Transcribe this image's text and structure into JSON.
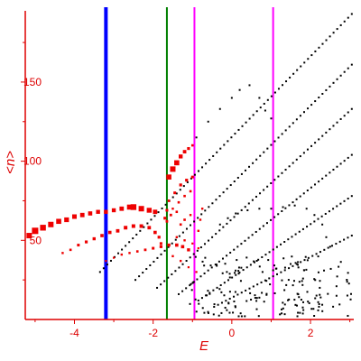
{
  "chart_data": {
    "type": "scatter",
    "title": "",
    "xlabel": "E",
    "ylabel": "<n>",
    "xlim": [
      -5.25,
      3.1
    ],
    "ylim": [
      0,
      195
    ],
    "x_ticks": [
      -4,
      -2,
      0,
      2
    ],
    "x_tick_labels": [
      "-4",
      "-2",
      "0",
      "2"
    ],
    "y_ticks": [
      50,
      100,
      150
    ],
    "y_tick_labels": [
      "50",
      "100",
      "150"
    ],
    "grid": false,
    "legend": "none",
    "colors": {
      "axis": "#dd0000",
      "red_points": "#ee0000",
      "black_points": "#000000",
      "line_blue": "#0000ff",
      "line_green": "#008000",
      "line_magenta": "#ff00ff"
    },
    "vertical_lines": [
      {
        "x": -3.2,
        "color": "#0000ff"
      },
      {
        "x": -1.65,
        "color": "#008000"
      },
      {
        "x": -0.95,
        "color": "#ff00ff"
      },
      {
        "x": 1.05,
        "color": "#ff00ff"
      }
    ],
    "series": [
      {
        "color": "red",
        "points": [
          [
            -5.15,
            53,
            3.0
          ],
          [
            -5.0,
            56,
            3.5
          ],
          [
            -4.8,
            58,
            3.2
          ],
          [
            -4.6,
            60,
            3.0
          ],
          [
            -4.4,
            62,
            2.8
          ],
          [
            -4.2,
            63,
            2.6
          ],
          [
            -4.0,
            65,
            2.5
          ],
          [
            -3.8,
            66,
            2.4
          ],
          [
            -3.6,
            67,
            2.3
          ],
          [
            -3.4,
            68,
            2.2
          ],
          [
            -3.2,
            68,
            2.2
          ],
          [
            -3.0,
            69,
            2.2
          ],
          [
            -2.8,
            70,
            2.4
          ],
          [
            -2.6,
            71,
            2.8
          ],
          [
            -2.5,
            71,
            3.2
          ],
          [
            -2.3,
            70,
            3.0
          ],
          [
            -2.1,
            69,
            2.7
          ],
          [
            -1.95,
            68,
            2.4
          ],
          [
            -4.3,
            42,
            1.2
          ],
          [
            -4.1,
            44,
            1.3
          ],
          [
            -3.9,
            47,
            1.5
          ],
          [
            -3.7,
            49,
            1.6
          ],
          [
            -3.5,
            51,
            1.7
          ],
          [
            -3.3,
            53,
            1.8
          ],
          [
            -3.1,
            55,
            1.8
          ],
          [
            -2.9,
            56,
            1.9
          ],
          [
            -2.7,
            58,
            2.0
          ],
          [
            -2.5,
            59,
            2.0
          ],
          [
            -2.3,
            59,
            2.0
          ],
          [
            -2.1,
            58,
            1.9
          ],
          [
            -1.95,
            55,
            1.8
          ],
          [
            -1.85,
            52,
            1.6
          ],
          [
            -1.8,
            48,
            1.5
          ],
          [
            -3.2,
            37,
            1.1
          ],
          [
            -3.0,
            39,
            1.1
          ],
          [
            -2.8,
            41,
            1.2
          ],
          [
            -2.6,
            42,
            1.2
          ],
          [
            -2.4,
            43,
            1.3
          ],
          [
            -2.2,
            44,
            1.4
          ],
          [
            -2.0,
            45,
            1.5
          ],
          [
            -1.8,
            46,
            1.6
          ],
          [
            -1.6,
            47,
            1.7
          ],
          [
            -1.4,
            47,
            1.8
          ],
          [
            -1.25,
            46,
            1.8
          ],
          [
            -1.1,
            44,
            1.7
          ],
          [
            -1.6,
            90,
            2.8
          ],
          [
            -1.5,
            95,
            3.0
          ],
          [
            -1.4,
            99,
            2.8
          ],
          [
            -1.3,
            103,
            2.2
          ],
          [
            -1.2,
            106,
            1.9
          ],
          [
            -1.1,
            108,
            1.6
          ],
          [
            -1.0,
            110,
            1.3
          ],
          [
            -1.6,
            75,
            1.4
          ],
          [
            -1.45,
            80,
            1.5
          ],
          [
            -1.3,
            85,
            1.6
          ],
          [
            -1.15,
            88,
            1.6
          ],
          [
            -1.0,
            90,
            1.5
          ],
          [
            -1.5,
            70,
            1.2
          ],
          [
            -1.35,
            74,
            1.3
          ],
          [
            -1.2,
            78,
            1.3
          ],
          [
            -1.05,
            81,
            1.3
          ],
          [
            -1.65,
            62,
            1.4
          ],
          [
            -1.55,
            66,
            1.4
          ],
          [
            -1.4,
            68,
            1.3
          ],
          [
            -1.7,
            64,
            1.6
          ],
          [
            -1.65,
            69,
            1.5
          ],
          [
            -1.3,
            60,
            1.3
          ],
          [
            -1.2,
            63,
            1.3
          ],
          [
            -1.05,
            66,
            1.2
          ],
          [
            -0.85,
            56,
            1.2
          ],
          [
            -0.8,
            63,
            1.2
          ],
          [
            -0.75,
            70,
            1.2
          ],
          [
            -1.5,
            40,
            1.2
          ],
          [
            -1.3,
            37,
            1.2
          ],
          [
            -1.1,
            33,
            1.1
          ],
          [
            -0.9,
            30,
            1.1
          ],
          [
            -1.4,
            52,
            1.2
          ],
          [
            -1.2,
            50,
            1.2
          ],
          [
            -1.0,
            48,
            1.1
          ],
          [
            -0.85,
            45,
            1.1
          ]
        ]
      },
      {
        "color": "black",
        "bands": [
          {
            "x0": -3.35,
            "y0": 30,
            "x1": 3.05,
            "y1": 193,
            "n": 70
          },
          {
            "x0": -2.45,
            "y0": 25,
            "x1": 3.05,
            "y1": 161,
            "n": 60
          },
          {
            "x0": -1.9,
            "y0": 20,
            "x1": 3.05,
            "y1": 133,
            "n": 54
          },
          {
            "x0": -1.35,
            "y0": 16,
            "x1": 3.05,
            "y1": 104,
            "n": 48
          },
          {
            "x0": -0.85,
            "y0": 12,
            "x1": 3.05,
            "y1": 78,
            "n": 42
          },
          {
            "x0": -0.45,
            "y0": 8,
            "x1": 3.05,
            "y1": 53,
            "n": 36
          }
        ],
        "upper_branch": [
          [
            -0.9,
            115
          ],
          [
            -0.6,
            125
          ],
          [
            -0.3,
            133
          ],
          [
            0.0,
            140
          ],
          [
            0.2,
            145
          ],
          [
            0.45,
            148
          ],
          [
            0.7,
            140
          ],
          [
            0.85,
            132
          ],
          [
            1.0,
            127
          ]
        ],
        "cluster": {
          "seed": 12345,
          "n": 170,
          "x_range": [
            -1.1,
            3.05
          ],
          "y_range": [
            2,
            40
          ]
        },
        "arc": [
          [
            -0.3,
            60
          ],
          [
            -0.1,
            64
          ],
          [
            0.1,
            67
          ],
          [
            0.4,
            69
          ],
          [
            0.7,
            70
          ],
          [
            1.0,
            70
          ],
          [
            1.3,
            71
          ],
          [
            1.6,
            72
          ],
          [
            1.9,
            70
          ],
          [
            2.1,
            66
          ],
          [
            2.3,
            60
          ],
          [
            2.4,
            52
          ],
          [
            2.5,
            46
          ]
        ]
      }
    ]
  }
}
